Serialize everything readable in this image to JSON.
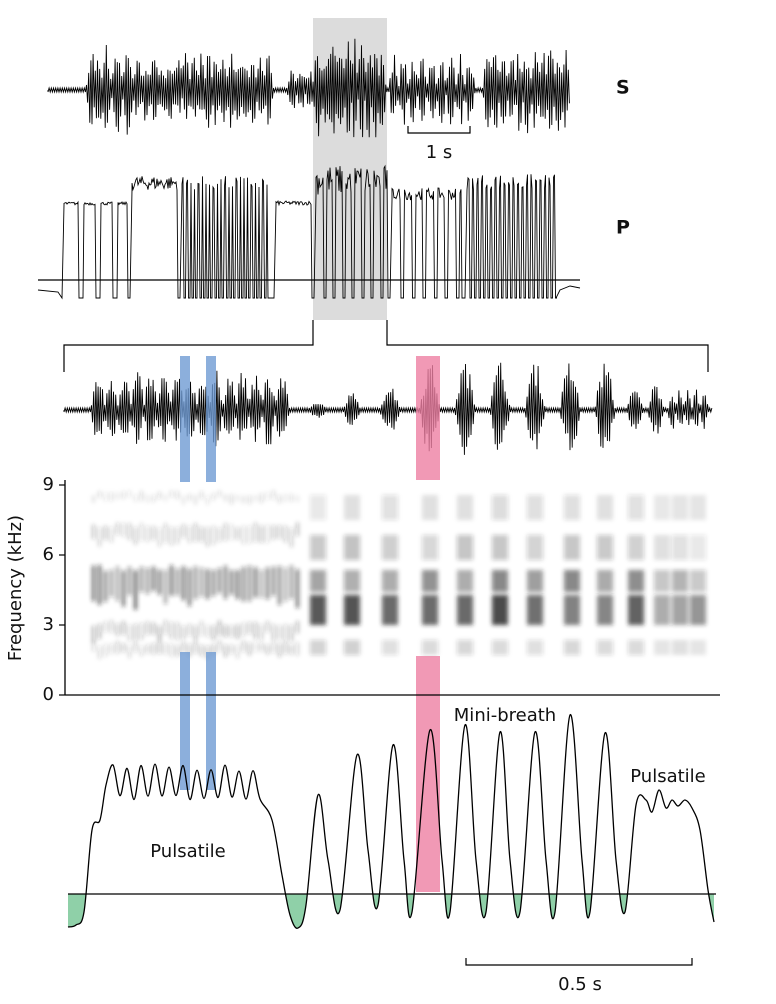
{
  "traces": {
    "s_label": "S",
    "p_label": "P",
    "scale_bar": "1 s"
  },
  "spectrogram": {
    "ylabel": "Frequency (kHz)",
    "ylim": [
      0,
      9
    ],
    "yticks": [
      0,
      3,
      6,
      9
    ]
  },
  "airflow": {
    "annotations": [
      "Mini-breath",
      "Pulsatile",
      "Pulsatile"
    ],
    "scale_bar": "0.5 s"
  }
}
